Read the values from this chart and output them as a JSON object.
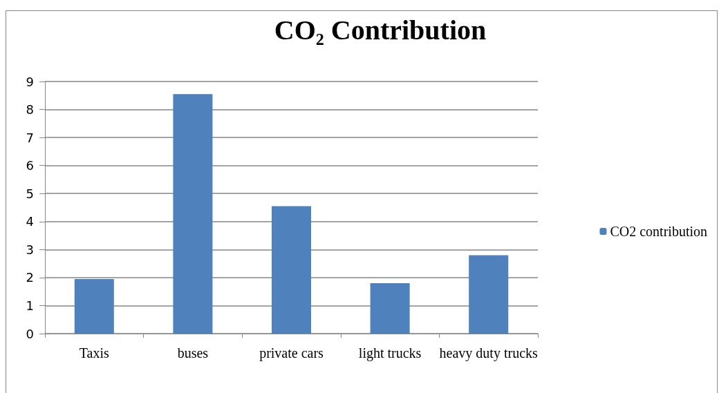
{
  "chart_data": {
    "type": "bar",
    "title": "CO₂ Contribution",
    "categories": [
      "Taxis",
      "buses",
      "private cars",
      "light trucks",
      "heavy duty trucks"
    ],
    "series": [
      {
        "name": "CO2 contribution",
        "color": "#4f81bd",
        "values": [
          1.95,
          8.55,
          4.55,
          1.8,
          2.8
        ]
      }
    ],
    "ylim": [
      0,
      9
    ],
    "yticks": [
      0,
      1,
      2,
      3,
      4,
      5,
      6,
      7,
      8,
      9
    ],
    "grid": "y",
    "legend": "right"
  }
}
